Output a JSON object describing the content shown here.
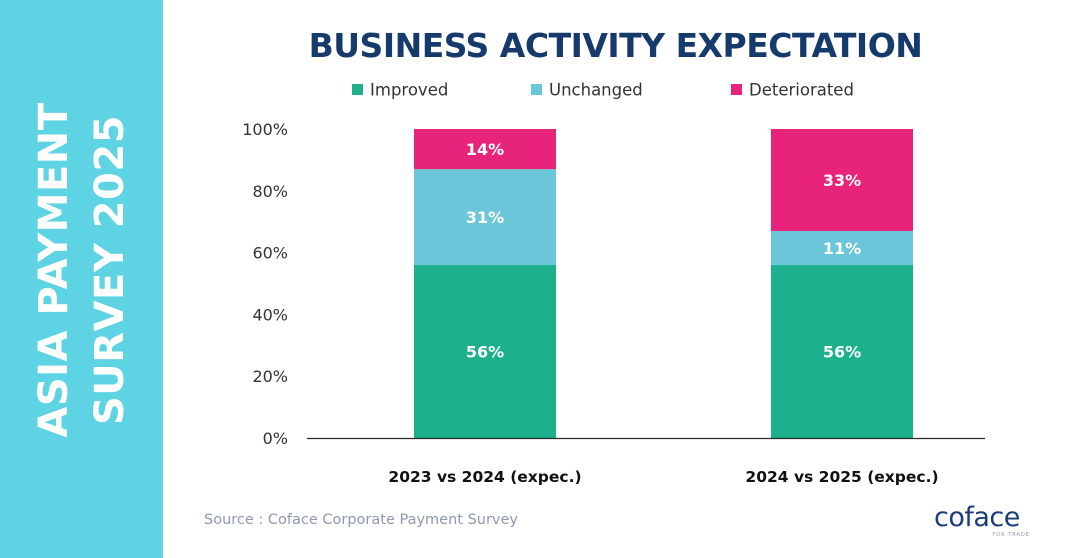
{
  "sidebar": {
    "line1": "ASIA PAYMENT",
    "line2": "SURVEY 2025"
  },
  "source": "Source : Coface Corporate Payment Survey",
  "logo": {
    "name": "coface",
    "tagline": "FOR TRADE"
  },
  "colors": {
    "sidebar": "#5dd3e3",
    "title": "#163a6b",
    "improved": "#1db08c",
    "unchanged": "#6bc6d9",
    "deteriorated": "#e8247a"
  },
  "chart_data": {
    "type": "bar",
    "stacked": true,
    "title": "BUSINESS ACTIVITY EXPECTATION",
    "categories": [
      "2023 vs 2024 (expec.)",
      "2024 vs 2025 (expec.)"
    ],
    "series": [
      {
        "name": "Improved",
        "values": [
          56,
          56
        ],
        "labels": [
          "56%",
          "56%"
        ],
        "color": "#1db08c"
      },
      {
        "name": "Unchanged",
        "values": [
          31,
          11
        ],
        "labels": [
          "31%",
          "11%"
        ],
        "color": "#6bc6d9"
      },
      {
        "name": "Deteriorated",
        "values": [
          14,
          33
        ],
        "labels": [
          "14%",
          "33%"
        ],
        "color": "#e8247a"
      }
    ],
    "yticks": [
      "0%",
      "20%",
      "40%",
      "60%",
      "80%",
      "100%"
    ],
    "ylim": [
      0,
      100
    ],
    "legend_position": "top",
    "grid": false
  }
}
